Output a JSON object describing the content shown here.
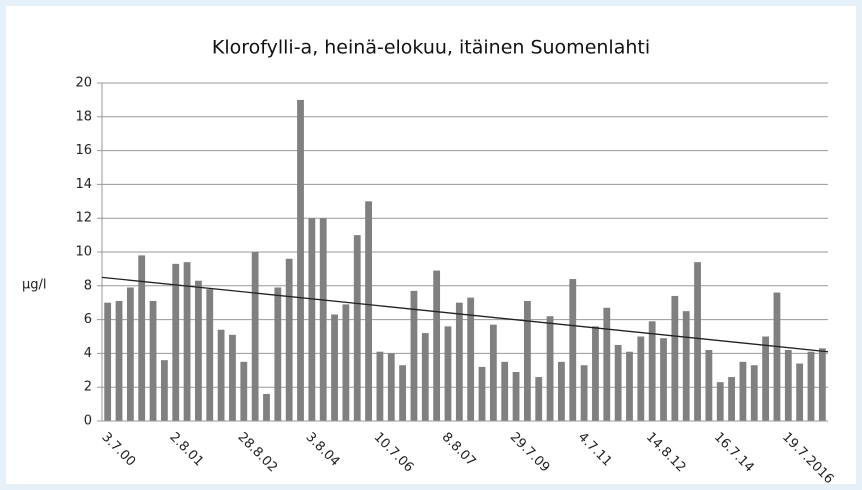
{
  "chart_data": {
    "type": "bar",
    "title": "Klorofylli-a, heinä-elokuu, itäinen Suomenlahti",
    "y_label": "µg/l",
    "categories": [
      "3.7.00",
      null,
      null,
      null,
      null,
      null,
      "2.8.01",
      null,
      null,
      null,
      null,
      null,
      "28.8.02",
      null,
      null,
      null,
      null,
      null,
      "3.8.04",
      null,
      null,
      null,
      null,
      null,
      "10.7.06",
      null,
      null,
      null,
      null,
      null,
      "8.8.07",
      null,
      null,
      null,
      null,
      null,
      "29.7.09",
      null,
      null,
      null,
      null,
      null,
      "4.7.11",
      null,
      null,
      null,
      null,
      null,
      "14.8.12",
      null,
      null,
      null,
      null,
      null,
      "16.7.14",
      null,
      null,
      null,
      null,
      null,
      "19.7.2016",
      null,
      null,
      null
    ],
    "values": [
      7.0,
      7.1,
      7.9,
      9.8,
      7.1,
      3.6,
      9.3,
      9.4,
      8.3,
      7.8,
      5.4,
      5.1,
      3.5,
      10.0,
      1.6,
      7.9,
      9.6,
      19.0,
      12.0,
      12.0,
      6.3,
      6.9,
      11.0,
      13.0,
      4.1,
      4.0,
      3.3,
      7.7,
      5.2,
      8.9,
      5.6,
      7.0,
      7.3,
      3.2,
      5.7,
      3.5,
      2.9,
      7.1,
      2.6,
      6.2,
      3.5,
      8.4,
      3.3,
      5.6,
      6.7,
      4.5,
      4.1,
      5.0,
      5.9,
      4.9,
      7.4,
      6.5,
      9.4,
      4.2,
      2.3,
      2.6,
      3.5,
      3.3,
      5.0,
      7.6,
      4.2,
      3.4,
      4.1,
      4.3
    ],
    "color": "#808080",
    "trendline": [
      8.5,
      4.1
    ],
    "ylim": [
      0,
      20
    ],
    "yticks": [
      0,
      2,
      4,
      6,
      8,
      10,
      12,
      14,
      16,
      18,
      20
    ],
    "grid": true
  }
}
